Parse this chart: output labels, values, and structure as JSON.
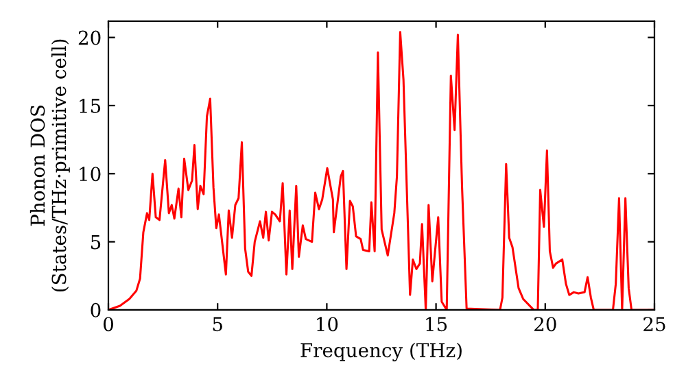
{
  "chart_data": {
    "type": "line",
    "xlabel": "Frequency (THz)",
    "ylabel": "Phonon DOS\n(States/THz·primitive cell)",
    "xlim": [
      0,
      25
    ],
    "ylim": [
      0,
      21.2
    ],
    "xticks": [
      0,
      5,
      10,
      15,
      20,
      25
    ],
    "yticks": [
      0,
      5,
      10,
      15,
      20
    ],
    "grid": false,
    "legend": false,
    "marker": "none",
    "line_style": "solid",
    "series": [
      {
        "color": "#ff0000",
        "x": [
          0,
          0.53,
          0.96,
          1.28,
          1.45,
          1.6,
          1.77,
          1.87,
          2.02,
          2.17,
          2.34,
          2.6,
          2.77,
          2.9,
          3.02,
          3.21,
          3.34,
          3.47,
          3.66,
          3.83,
          3.94,
          4.09,
          4.21,
          4.36,
          4.51,
          4.66,
          4.81,
          4.94,
          5.06,
          5.38,
          5.51,
          5.66,
          5.81,
          5.96,
          6.11,
          6.26,
          6.4,
          6.55,
          6.7,
          6.94,
          7.09,
          7.21,
          7.34,
          7.49,
          7.64,
          7.85,
          7.98,
          8.15,
          8.3,
          8.42,
          8.6,
          8.72,
          8.9,
          9.04,
          9.32,
          9.47,
          9.64,
          9.79,
          10.02,
          10.28,
          10.32,
          10.64,
          10.74,
          10.9,
          11.06,
          11.19,
          11.34,
          11.55,
          11.66,
          11.94,
          12.04,
          12.19,
          12.34,
          12.51,
          12.79,
          13.09,
          13.21,
          13.36,
          13.51,
          13.81,
          13.94,
          14.1,
          14.26,
          14.36,
          14.53,
          14.66,
          14.83,
          15.1,
          15.26,
          15.49,
          15.68,
          15.85,
          16.0,
          16.19,
          16.4,
          17.93,
          18.04,
          18.21,
          18.35,
          18.5,
          18.78,
          18.99,
          19.47,
          19.66,
          19.77,
          19.94,
          20.08,
          20.21,
          20.36,
          20.49,
          20.78,
          20.95,
          21.1,
          21.31,
          21.52,
          21.8,
          21.94,
          22.09,
          22.22,
          23.1,
          23.23,
          23.38,
          23.52,
          23.67,
          23.82,
          23.95,
          25
        ],
        "values": [
          0,
          0.3,
          0.8,
          1.4,
          2.3,
          5.7,
          7.1,
          6.6,
          10.0,
          6.8,
          6.6,
          11.0,
          7.1,
          7.7,
          6.7,
          8.9,
          6.8,
          11.1,
          8.8,
          9.5,
          12.1,
          7.4,
          9.1,
          8.5,
          14.2,
          15.5,
          9.0,
          6.0,
          7.0,
          2.6,
          7.3,
          5.3,
          7.7,
          8.2,
          12.3,
          4.5,
          2.8,
          2.5,
          5.0,
          6.5,
          5.3,
          7.2,
          5.1,
          7.2,
          7.0,
          6.5,
          9.3,
          2.6,
          7.3,
          3.0,
          9.1,
          3.9,
          6.2,
          5.2,
          5.0,
          8.6,
          7.4,
          8.1,
          10.4,
          8.1,
          5.7,
          9.8,
          10.2,
          3.0,
          8.0,
          7.6,
          5.4,
          5.2,
          4.4,
          4.3,
          7.9,
          4.3,
          18.9,
          5.9,
          4.0,
          7.1,
          9.8,
          20.4,
          16.9,
          1.1,
          3.7,
          3.0,
          3.4,
          6.3,
          0,
          7.7,
          2.1,
          6.8,
          0.6,
          0,
          17.2,
          13.2,
          20.2,
          9.1,
          0.1,
          0,
          0.9,
          10.7,
          5.3,
          4.6,
          1.6,
          0.8,
          0,
          0,
          8.8,
          6.1,
          11.7,
          4.3,
          3.1,
          3.4,
          3.7,
          1.9,
          1.1,
          1.3,
          1.2,
          1.3,
          2.4,
          0.9,
          0,
          0,
          1.9,
          8.2,
          0,
          8.2,
          1.6,
          0,
          0
        ]
      }
    ]
  }
}
